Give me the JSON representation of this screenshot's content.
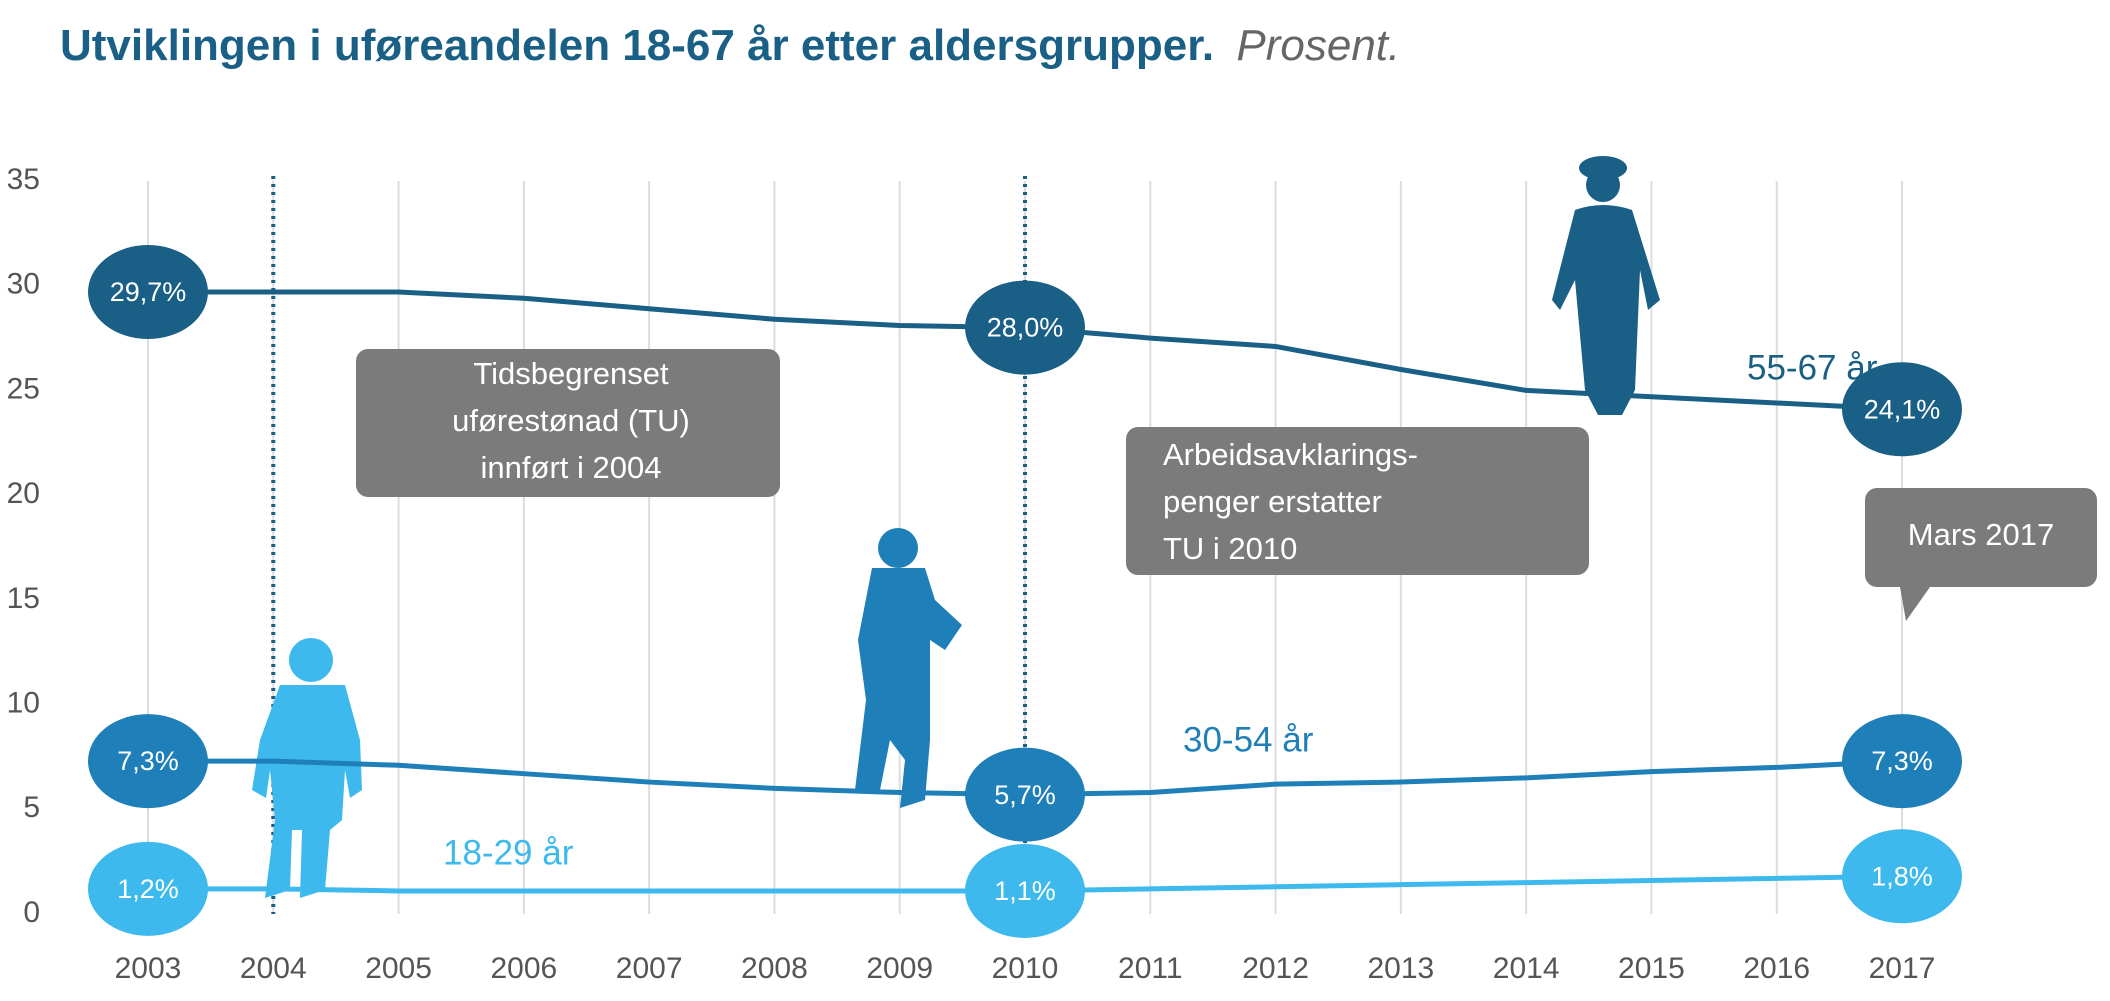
{
  "chart_data": {
    "type": "line",
    "title": "Utviklingen i uføreandelen 18-67 år etter aldersgrupper.",
    "subtitle": "Prosent.",
    "x": [
      2003,
      2004,
      2005,
      2006,
      2007,
      2008,
      2009,
      2010,
      2011,
      2012,
      2013,
      2014,
      2015,
      2016,
      2017
    ],
    "xlim": [
      2003,
      2017
    ],
    "xticks": [
      2003,
      2004,
      2005,
      2006,
      2007,
      2008,
      2009,
      2010,
      2011,
      2012,
      2013,
      2014,
      2015,
      2016,
      2017
    ],
    "ylim": [
      0,
      35
    ],
    "yticks": [
      0,
      5,
      10,
      15,
      20,
      25,
      30,
      35
    ],
    "grid": "x",
    "series": [
      {
        "name": "55-67 år",
        "color": "#1a5f85",
        "values": [
          29.7,
          29.7,
          29.7,
          29.4,
          28.9,
          28.4,
          28.1,
          28.0,
          27.5,
          27.1,
          26.0,
          25.0,
          24.7,
          24.4,
          24.1
        ],
        "value_labels": [
          "29,7%",
          null,
          null,
          null,
          null,
          null,
          null,
          "28,0%",
          null,
          null,
          null,
          null,
          null,
          null,
          "24,1%"
        ]
      },
      {
        "name": "30-54 år",
        "color": "#1f7fb8",
        "values": [
          7.3,
          7.3,
          7.1,
          6.7,
          6.3,
          6.0,
          5.8,
          5.7,
          5.8,
          6.2,
          6.3,
          6.5,
          6.8,
          7.0,
          7.3
        ],
        "value_labels": [
          "7,3%",
          null,
          null,
          null,
          null,
          null,
          null,
          "5,7%",
          null,
          null,
          null,
          null,
          null,
          null,
          "7,3%"
        ]
      },
      {
        "name": "18-29 år",
        "color": "#3db9ee",
        "values": [
          1.2,
          1.2,
          1.1,
          1.1,
          1.1,
          1.1,
          1.1,
          1.1,
          1.2,
          1.3,
          1.4,
          1.5,
          1.6,
          1.7,
          1.8
        ],
        "value_labels": [
          "1,2%",
          null,
          null,
          null,
          null,
          null,
          null,
          "1,1%",
          null,
          null,
          null,
          null,
          null,
          null,
          "1,8%"
        ]
      }
    ],
    "reference_lines": [
      2004,
      2010
    ],
    "annotations": [
      {
        "text": [
          "Tidsbegrenset",
          "uførestønad (TU)",
          "innført i 2004"
        ]
      },
      {
        "text": [
          "Arbeidsavklarings-",
          "penger erstatter",
          "TU i 2010"
        ]
      },
      {
        "text": [
          "Mars 2017"
        ]
      }
    ]
  }
}
